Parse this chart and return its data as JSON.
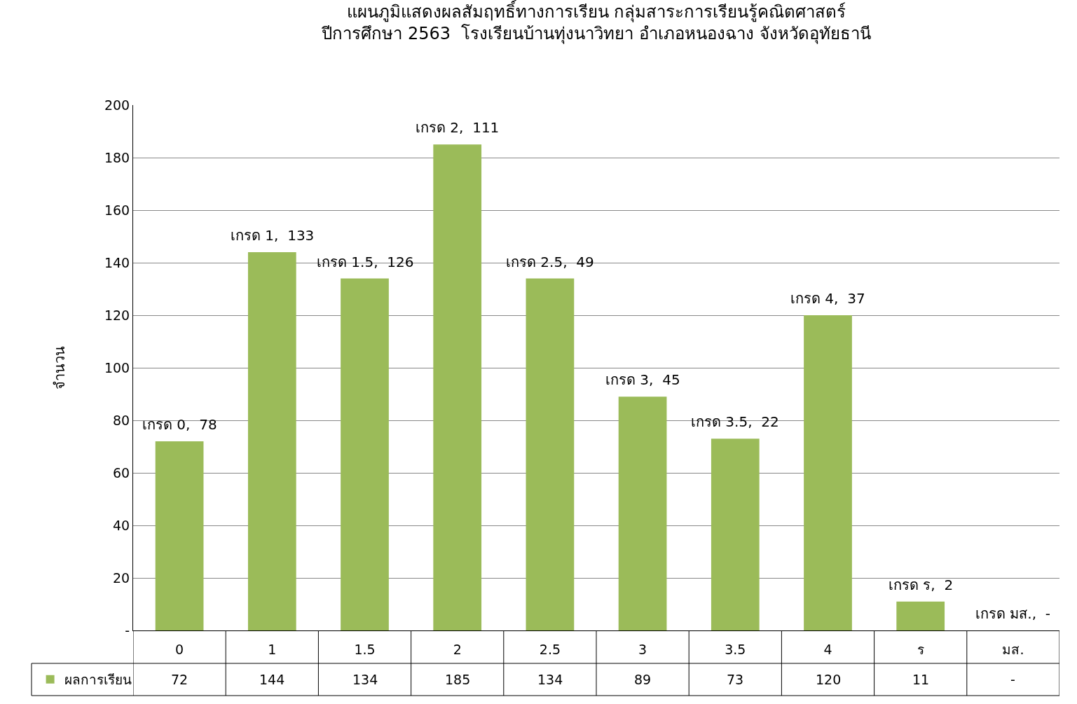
{
  "chart_data": {
    "type": "bar",
    "title": "แผนภูมิแสดงผลสัมฤทธิ์ทางการเรียน กลุ่มสาระการเรียนรู้คณิตศาสตร์\nปีการศึกษา 2563  โรงเรียนบ้านทุ่งนาวิทยา อำเภอหนองฉาง จังหวัดอุทัยธานี",
    "ylabel": "จำนวน",
    "categories": [
      "0",
      "1",
      "1.5",
      "2",
      "2.5",
      "3",
      "3.5",
      "4",
      "ร",
      "มส."
    ],
    "series": [
      {
        "name": "ผลการเรียน",
        "color": "#9bbb59",
        "values": [
          72,
          144,
          134,
          185,
          134,
          89,
          73,
          120,
          11,
          null
        ],
        "value_labels": [
          "72",
          "144",
          "134",
          "185",
          "134",
          "89",
          "73",
          "120",
          "11",
          "-"
        ]
      }
    ],
    "ylim": [
      0,
      200
    ],
    "yticks": [
      {
        "value": 0,
        "label": "-"
      },
      20,
      40,
      60,
      80,
      100,
      120,
      140,
      160,
      180,
      200
    ],
    "grid": "y",
    "legend": "bottom left",
    "annotations": [
      {
        "text": "เกรด 0,  78",
        "x": "0",
        "y": 72
      },
      {
        "text": "เกรด 1,  133",
        "x": "1",
        "y": 144
      },
      {
        "text": "เกรด 1.5,  126",
        "x": "1.5",
        "y": 134
      },
      {
        "text": "เกรด 2,  111",
        "x": "2",
        "y": 185
      },
      {
        "text": "เกรด 2.5,  49",
        "x": "2.5",
        "y": 134
      },
      {
        "text": "เกรด 3,  45",
        "x": "3",
        "y": 89
      },
      {
        "text": "เกรด 3.5,  22",
        "x": "3.5",
        "y": 73
      },
      {
        "text": "เกรด 4,  37",
        "x": "4",
        "y": 120
      },
      {
        "text": "เกรด ร,  2",
        "x": "ร",
        "y": 11
      },
      "เกรด มส.,  -"
    ]
  }
}
